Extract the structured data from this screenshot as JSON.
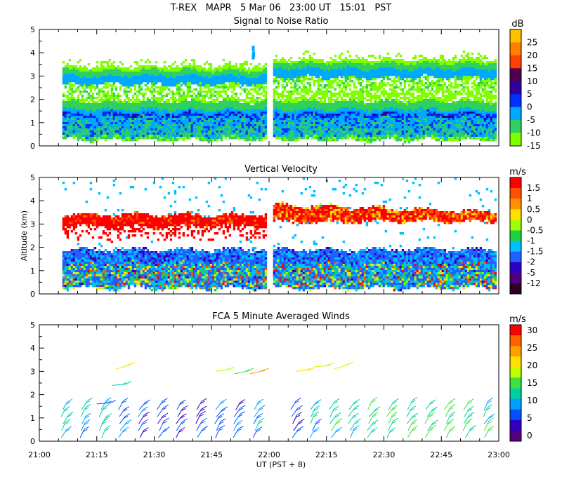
{
  "header": {
    "campaign": "T-REX",
    "radar": "MAPR",
    "date": "5 Mar 06",
    "ut_time": "23:00 UT",
    "local_time": "15:01",
    "local_zone": "PST"
  },
  "xaxis": {
    "label": "UT  (PST + 8)",
    "ticks": [
      "21:00",
      "21:15",
      "21:30",
      "21:45",
      "22:00",
      "22:15",
      "22:30",
      "22:45",
      "23:00"
    ]
  },
  "ylabel": "Altitude (km)",
  "chart_data": [
    {
      "id": "snr",
      "type": "heatmap",
      "title": "Signal to Noise Ratio",
      "ylim": [
        0,
        5
      ],
      "yticks": [
        "0",
        "1",
        "2",
        "3",
        "4",
        "5"
      ],
      "colorbar": {
        "unit": "dB",
        "labels": [
          "25",
          "20",
          "15",
          "10",
          "5",
          "0",
          "-5",
          "-10",
          "-15"
        ],
        "colors": [
          "#ffc000",
          "#ff8000",
          "#ff4000",
          "#500050",
          "#3000a0",
          "#0030ff",
          "#00a8ff",
          "#30d060",
          "#80ff00"
        ]
      },
      "gap_ut": [
        "21:59",
        "22:01"
      ],
      "data_range_ut": [
        "21:06",
        "22:59"
      ],
      "layers": [
        {
          "from_km": 0.3,
          "to_km": 0.9,
          "level_db": -10
        },
        {
          "from_km": 0.9,
          "to_km": 1.6,
          "level_db": 0
        },
        {
          "from_km": 1.6,
          "to_km": 2.0,
          "level_db": -10
        },
        {
          "from_km": 2.0,
          "to_km": 2.9,
          "level_db": -15
        },
        {
          "from_km": 2.9,
          "to_km": 3.5,
          "level_db": -5
        }
      ]
    },
    {
      "id": "velocity",
      "type": "heatmap",
      "title": "Vertical Velocity",
      "ylim": [
        0,
        5
      ],
      "yticks": [
        "0",
        "1",
        "2",
        "3",
        "4",
        "5"
      ],
      "colorbar": {
        "unit": "m/s",
        "labels": [
          "1.5",
          "1",
          "0.5",
          "0",
          "-0.5",
          "-1",
          "-1.5",
          "-2",
          "-5",
          "-12"
        ],
        "colors": [
          "#ff0000",
          "#ff5000",
          "#ff9000",
          "#ffe000",
          "#a0ff00",
          "#20d040",
          "#00c0ff",
          "#2060ff",
          "#3000c0",
          "#500080",
          "#300020"
        ]
      },
      "layers": [
        {
          "from_km": 0.3,
          "to_km": 1.9,
          "level_ms": -1
        },
        {
          "from_km": 2.9,
          "to_km": 3.4,
          "level_ms": 1.5
        }
      ]
    },
    {
      "id": "winds",
      "type": "scatter",
      "title": "FCA 5 Minute Averaged Winds",
      "ylim": [
        0,
        5
      ],
      "yticks": [
        "0",
        "1",
        "2",
        "3",
        "4",
        "5"
      ],
      "colorbar": {
        "unit": "m/s",
        "labels": [
          "30",
          "25",
          "20",
          "15",
          "10",
          "5",
          "0"
        ],
        "colors": [
          "#ff0000",
          "#ff6000",
          "#ffa000",
          "#ffe000",
          "#c0ff00",
          "#40e040",
          "#00d0a0",
          "#00a0ff",
          "#0050ff",
          "#3000c0",
          "#500080"
        ]
      },
      "barbs": [
        {
          "t": "21:20",
          "alt": 3.1,
          "speed": 22
        },
        {
          "t": "21:19",
          "alt": 2.4,
          "speed": 12
        },
        {
          "t": "21:15",
          "alt": 1.6,
          "speed": 6
        },
        {
          "t": "21:46",
          "alt": 3.0,
          "speed": 19
        },
        {
          "t": "21:51",
          "alt": 2.9,
          "speed": 16
        },
        {
          "t": "21:55",
          "alt": 2.9,
          "speed": 24
        },
        {
          "t": "22:07",
          "alt": 3.0,
          "speed": 22
        },
        {
          "t": "22:12",
          "alt": 3.2,
          "speed": 17
        },
        {
          "t": "22:17",
          "alt": 3.1,
          "speed": 19
        }
      ],
      "column_times": [
        "21:06",
        "21:11",
        "21:16",
        "21:21",
        "21:26",
        "21:31",
        "21:36",
        "21:41",
        "21:46",
        "21:51",
        "21:56",
        "22:06",
        "22:11",
        "22:16",
        "22:21",
        "22:26",
        "22:31",
        "22:36",
        "22:41",
        "22:46",
        "22:51",
        "22:56"
      ],
      "column_speeds": [
        12,
        10,
        11,
        8,
        6,
        5,
        4,
        5,
        7,
        6,
        9,
        5,
        9,
        11,
        12,
        12,
        13,
        13,
        14,
        13,
        14,
        13
      ]
    }
  ]
}
